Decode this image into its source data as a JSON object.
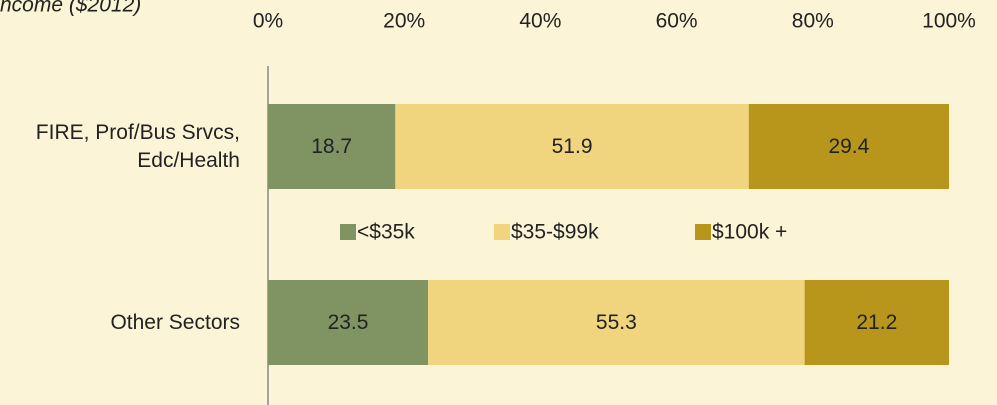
{
  "chart_data": {
    "type": "stacked_bar_horizontal",
    "title": "ncome ($2012)",
    "categories": [
      "FIRE, Prof/Bus Srvcs, Edc/Health",
      "Other Sectors"
    ],
    "series": [
      {
        "name": "<$35k",
        "color": "#7f9462",
        "values": [
          18.7,
          23.5
        ]
      },
      {
        "name": "$35-$99k",
        "color": "#f0d57e",
        "values": [
          51.9,
          55.3
        ]
      },
      {
        "name": "$100k +",
        "color": "#b8961c",
        "values": [
          29.4,
          21.2
        ]
      }
    ],
    "xlim": [
      0,
      100
    ],
    "xticks": [
      {
        "value": 0,
        "label": "0%"
      },
      {
        "value": 20,
        "label": "20%"
      },
      {
        "value": 40,
        "label": "40%"
      },
      {
        "value": 60,
        "label": "60%"
      },
      {
        "value": 80,
        "label": "80%"
      },
      {
        "value": 100,
        "label": "100%"
      }
    ],
    "legend": "middle"
  }
}
